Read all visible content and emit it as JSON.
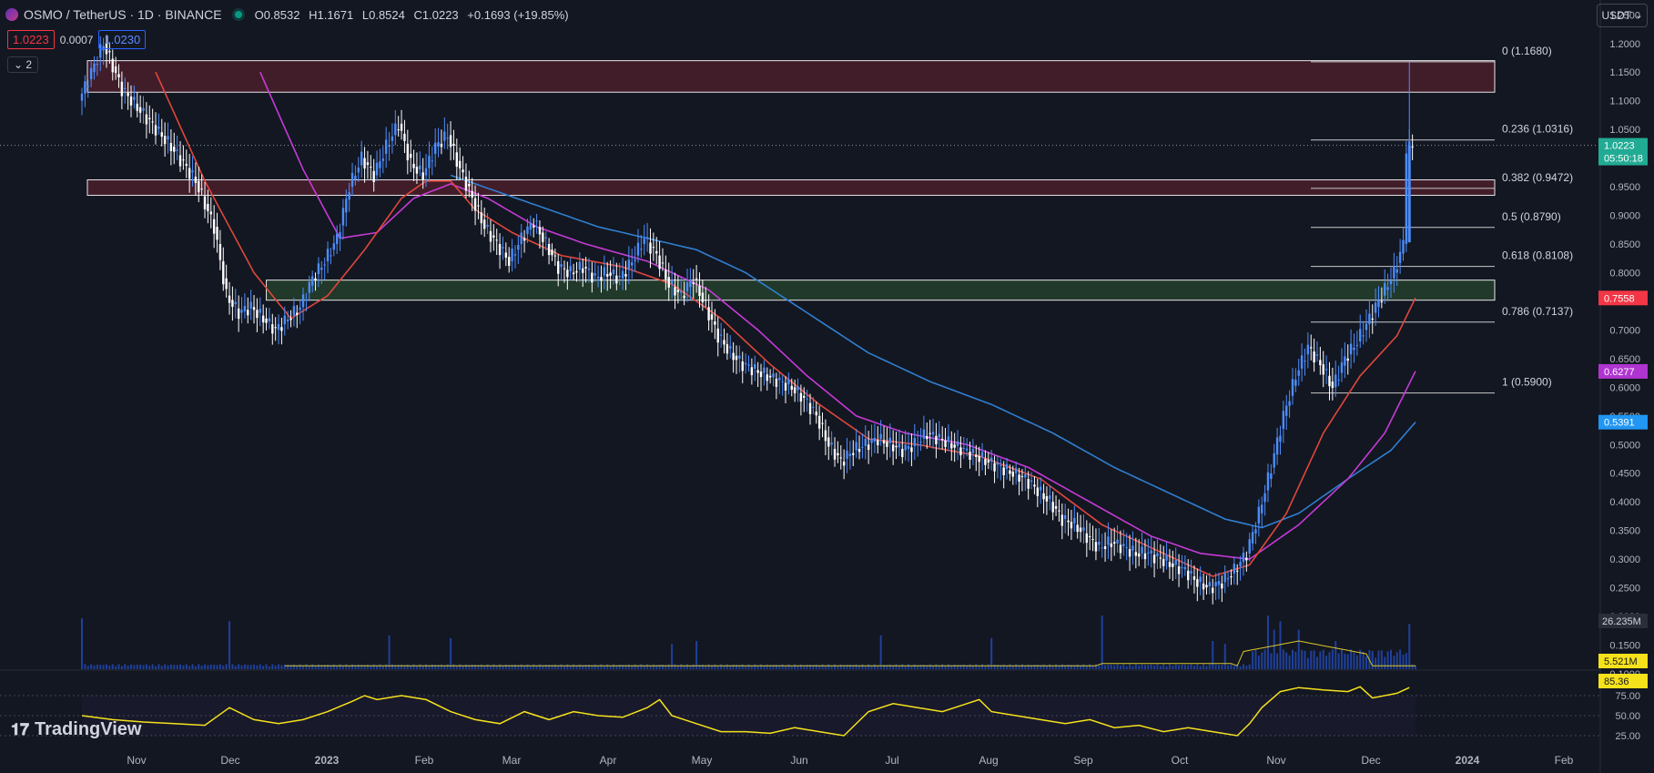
{
  "header": {
    "symbol": "OSMO / TetherUS · 1D · BINANCE",
    "open_label": "O",
    "open": "0.8532",
    "high_label": "H",
    "high": "1.1671",
    "low_label": "L",
    "low": "0.8524",
    "close_label": "C",
    "close": "1.0223",
    "change": "+0.1693 (+19.85%)",
    "bid": "1.0223",
    "spread": "0.0007",
    "ask": "1.0230",
    "indicators_toggle": "2"
  },
  "currency_select": "USDT",
  "brand": "TradingView",
  "colors": {
    "bg": "#131722",
    "up": "#4c8dfd",
    "down": "#ffffff",
    "ema_short": "#e0473b",
    "ema_mid": "#c73ad6",
    "ema_long": "#2f7fd1",
    "resistance_zone": "#4a1f2c",
    "support_zone": "#24402b",
    "rsi": "#f5e21b",
    "volume_ma": "#d9c72a"
  },
  "chart_data": {
    "type": "candlestick",
    "price_axis": {
      "ticks": [
        "1.2500",
        "1.2000",
        "1.1500",
        "1.1000",
        "1.0500",
        "0.9500",
        "0.9000",
        "0.8500",
        "0.8000",
        "0.7000",
        "0.6500",
        "0.6000",
        "0.5500",
        "0.5000",
        "0.4500",
        "0.4000",
        "0.3500",
        "0.3000",
        "0.2500",
        "0.2000",
        "0.1500",
        "0.1000"
      ],
      "tick_values": [
        1.25,
        1.2,
        1.15,
        1.1,
        1.05,
        0.95,
        0.9,
        0.85,
        0.8,
        0.7,
        0.65,
        0.6,
        0.55,
        0.5,
        0.45,
        0.4,
        0.35,
        0.3,
        0.25,
        0.2,
        0.15,
        0.1
      ],
      "ylim": [
        0.1,
        1.26
      ]
    },
    "time_axis": {
      "labels": [
        "Nov",
        "Dec",
        "2023",
        "Feb",
        "Mar",
        "Apr",
        "May",
        "Jun",
        "Jul",
        "Aug",
        "Sep",
        "Oct",
        "Nov",
        "Dec",
        "2024",
        "Feb"
      ],
      "bold": [
        "2023",
        "2024"
      ]
    },
    "price_path": [
      [
        0,
        1.1
      ],
      [
        8,
        1.2
      ],
      [
        14,
        1.12
      ],
      [
        22,
        1.07
      ],
      [
        30,
        1.02
      ],
      [
        38,
        0.96
      ],
      [
        44,
        0.88
      ],
      [
        48,
        0.76
      ],
      [
        52,
        0.73
      ],
      [
        56,
        0.74
      ],
      [
        60,
        0.72
      ],
      [
        64,
        0.7
      ],
      [
        68,
        0.72
      ],
      [
        72,
        0.74
      ],
      [
        76,
        0.79
      ],
      [
        80,
        0.82
      ],
      [
        84,
        0.86
      ],
      [
        88,
        0.95
      ],
      [
        92,
        1.0
      ],
      [
        96,
        0.97
      ],
      [
        100,
        1.02
      ],
      [
        104,
        1.06
      ],
      [
        108,
        0.99
      ],
      [
        112,
        0.97
      ],
      [
        116,
        1.02
      ],
      [
        120,
        1.04
      ],
      [
        124,
        0.98
      ],
      [
        128,
        0.93
      ],
      [
        132,
        0.88
      ],
      [
        136,
        0.85
      ],
      [
        140,
        0.82
      ],
      [
        144,
        0.86
      ],
      [
        148,
        0.89
      ],
      [
        152,
        0.85
      ],
      [
        156,
        0.81
      ],
      [
        160,
        0.8
      ],
      [
        164,
        0.81
      ],
      [
        168,
        0.79
      ],
      [
        172,
        0.8
      ],
      [
        176,
        0.79
      ],
      [
        180,
        0.82
      ],
      [
        184,
        0.86
      ],
      [
        188,
        0.83
      ],
      [
        192,
        0.78
      ],
      [
        196,
        0.76
      ],
      [
        200,
        0.79
      ],
      [
        204,
        0.74
      ],
      [
        208,
        0.69
      ],
      [
        212,
        0.66
      ],
      [
        216,
        0.64
      ],
      [
        220,
        0.63
      ],
      [
        224,
        0.62
      ],
      [
        228,
        0.61
      ],
      [
        232,
        0.6
      ],
      [
        236,
        0.58
      ],
      [
        240,
        0.55
      ],
      [
        244,
        0.5
      ],
      [
        248,
        0.47
      ],
      [
        252,
        0.49
      ],
      [
        256,
        0.5
      ],
      [
        260,
        0.51
      ],
      [
        264,
        0.5
      ],
      [
        268,
        0.49
      ],
      [
        272,
        0.5
      ],
      [
        276,
        0.52
      ],
      [
        280,
        0.51
      ],
      [
        284,
        0.5
      ],
      [
        288,
        0.49
      ],
      [
        292,
        0.48
      ],
      [
        296,
        0.47
      ],
      [
        300,
        0.46
      ],
      [
        304,
        0.45
      ],
      [
        308,
        0.44
      ],
      [
        312,
        0.42
      ],
      [
        316,
        0.4
      ],
      [
        320,
        0.37
      ],
      [
        324,
        0.36
      ],
      [
        328,
        0.34
      ],
      [
        332,
        0.32
      ],
      [
        336,
        0.33
      ],
      [
        340,
        0.32
      ],
      [
        344,
        0.31
      ],
      [
        348,
        0.31
      ],
      [
        352,
        0.3
      ],
      [
        356,
        0.29
      ],
      [
        360,
        0.28
      ],
      [
        364,
        0.26
      ],
      [
        368,
        0.25
      ],
      [
        372,
        0.26
      ],
      [
        376,
        0.28
      ],
      [
        380,
        0.31
      ],
      [
        384,
        0.38
      ],
      [
        388,
        0.46
      ],
      [
        392,
        0.55
      ],
      [
        396,
        0.62
      ],
      [
        400,
        0.67
      ],
      [
        404,
        0.64
      ],
      [
        408,
        0.6
      ],
      [
        412,
        0.65
      ],
      [
        416,
        0.68
      ],
      [
        420,
        0.72
      ],
      [
        424,
        0.76
      ],
      [
        428,
        0.8
      ],
      [
        431,
        0.85
      ],
      [
        432,
        1.02
      ]
    ],
    "ema_short": [
      [
        24,
        1.15
      ],
      [
        40,
        0.96
      ],
      [
        56,
        0.8
      ],
      [
        68,
        0.72
      ],
      [
        80,
        0.76
      ],
      [
        92,
        0.84
      ],
      [
        104,
        0.93
      ],
      [
        112,
        0.96
      ],
      [
        120,
        0.96
      ],
      [
        128,
        0.91
      ],
      [
        140,
        0.87
      ],
      [
        156,
        0.83
      ],
      [
        176,
        0.81
      ],
      [
        192,
        0.78
      ],
      [
        208,
        0.72
      ],
      [
        224,
        0.64
      ],
      [
        240,
        0.57
      ],
      [
        256,
        0.51
      ],
      [
        272,
        0.5
      ],
      [
        292,
        0.48
      ],
      [
        312,
        0.44
      ],
      [
        332,
        0.36
      ],
      [
        352,
        0.31
      ],
      [
        368,
        0.27
      ],
      [
        380,
        0.29
      ],
      [
        392,
        0.38
      ],
      [
        404,
        0.52
      ],
      [
        416,
        0.62
      ],
      [
        428,
        0.69
      ],
      [
        434,
        0.756
      ]
    ],
    "ema_mid": [
      [
        58,
        1.15
      ],
      [
        72,
        0.98
      ],
      [
        84,
        0.86
      ],
      [
        96,
        0.87
      ],
      [
        108,
        0.93
      ],
      [
        120,
        0.955
      ],
      [
        132,
        0.93
      ],
      [
        148,
        0.88
      ],
      [
        164,
        0.85
      ],
      [
        184,
        0.82
      ],
      [
        204,
        0.77
      ],
      [
        220,
        0.7
      ],
      [
        236,
        0.62
      ],
      [
        252,
        0.55
      ],
      [
        268,
        0.52
      ],
      [
        288,
        0.5
      ],
      [
        308,
        0.46
      ],
      [
        328,
        0.4
      ],
      [
        348,
        0.34
      ],
      [
        364,
        0.31
      ],
      [
        380,
        0.3
      ],
      [
        396,
        0.36
      ],
      [
        412,
        0.44
      ],
      [
        424,
        0.52
      ],
      [
        434,
        0.628
      ]
    ],
    "ema_long": [
      [
        120,
        0.97
      ],
      [
        136,
        0.94
      ],
      [
        152,
        0.91
      ],
      [
        168,
        0.88
      ],
      [
        184,
        0.86
      ],
      [
        200,
        0.84
      ],
      [
        216,
        0.8
      ],
      [
        236,
        0.73
      ],
      [
        256,
        0.66
      ],
      [
        276,
        0.61
      ],
      [
        296,
        0.57
      ],
      [
        316,
        0.52
      ],
      [
        336,
        0.46
      ],
      [
        356,
        0.41
      ],
      [
        372,
        0.37
      ],
      [
        384,
        0.355
      ],
      [
        396,
        0.38
      ],
      [
        412,
        0.44
      ],
      [
        426,
        0.49
      ],
      [
        434,
        0.539
      ]
    ],
    "zones": [
      {
        "type": "resistance",
        "from": 1.115,
        "to": 1.17
      },
      {
        "type": "resistance",
        "from": 0.935,
        "to": 0.962
      },
      {
        "type": "support",
        "from": 0.752,
        "to": 0.787
      }
    ],
    "fibonacci": [
      {
        "label": "0 (1.1680)",
        "value": 1.168
      },
      {
        "label": "0.236 (1.0316)",
        "value": 1.0316
      },
      {
        "label": "0.382 (0.9472)",
        "value": 0.9472
      },
      {
        "label": "0.5 (0.8790)",
        "value": 0.879
      },
      {
        "label": "0.618 (0.8108)",
        "value": 0.8108
      },
      {
        "label": "0.786 (0.7137)",
        "value": 0.7137
      },
      {
        "label": "1 (0.5900)",
        "value": 0.59
      }
    ],
    "price_badges": [
      {
        "text": "1.0223",
        "sub": "05:50:18",
        "value": 1.0223,
        "color": "#22ab94"
      },
      {
        "text": "0.7558",
        "value": 0.7558,
        "color": "#f23645"
      },
      {
        "text": "0.6277",
        "value": 0.6277,
        "color": "#b035d0"
      },
      {
        "text": "0.5391",
        "value": 0.5391,
        "color": "#2196f3"
      }
    ],
    "volume": {
      "label_last": "26.235M",
      "label_ma": "5.521M",
      "spikes": [
        [
          0,
          0.9
        ],
        [
          48,
          0.85
        ],
        [
          100,
          0.6
        ],
        [
          120,
          0.55
        ],
        [
          192,
          0.45
        ],
        [
          200,
          0.5
        ],
        [
          260,
          0.6
        ],
        [
          296,
          0.55
        ],
        [
          332,
          0.95
        ],
        [
          368,
          0.5
        ],
        [
          372,
          0.45
        ],
        [
          386,
          0.95
        ],
        [
          388,
          0.7
        ],
        [
          390,
          0.85
        ],
        [
          396,
          0.7
        ],
        [
          408,
          0.5
        ],
        [
          432,
          0.8
        ]
      ]
    },
    "rsi": {
      "value_label": "85.36",
      "ticks": [
        "75.00",
        "50.00",
        "25.00"
      ],
      "tick_values": [
        75,
        50,
        25
      ],
      "points": [
        [
          0,
          50
        ],
        [
          10,
          45
        ],
        [
          20,
          42
        ],
        [
          30,
          40
        ],
        [
          40,
          38
        ],
        [
          48,
          60
        ],
        [
          56,
          45
        ],
        [
          64,
          40
        ],
        [
          72,
          45
        ],
        [
          80,
          55
        ],
        [
          88,
          68
        ],
        [
          92,
          75
        ],
        [
          96,
          70
        ],
        [
          104,
          75
        ],
        [
          112,
          70
        ],
        [
          120,
          55
        ],
        [
          128,
          45
        ],
        [
          136,
          40
        ],
        [
          144,
          55
        ],
        [
          152,
          45
        ],
        [
          160,
          55
        ],
        [
          168,
          50
        ],
        [
          176,
          48
        ],
        [
          184,
          60
        ],
        [
          188,
          70
        ],
        [
          192,
          50
        ],
        [
          200,
          40
        ],
        [
          208,
          30
        ],
        [
          216,
          30
        ],
        [
          224,
          28
        ],
        [
          232,
          35
        ],
        [
          240,
          30
        ],
        [
          248,
          25
        ],
        [
          256,
          55
        ],
        [
          264,
          65
        ],
        [
          272,
          60
        ],
        [
          280,
          55
        ],
        [
          288,
          65
        ],
        [
          292,
          70
        ],
        [
          296,
          55
        ],
        [
          304,
          50
        ],
        [
          312,
          45
        ],
        [
          320,
          40
        ],
        [
          328,
          45
        ],
        [
          336,
          35
        ],
        [
          344,
          38
        ],
        [
          352,
          30
        ],
        [
          360,
          35
        ],
        [
          368,
          30
        ],
        [
          376,
          25
        ],
        [
          380,
          40
        ],
        [
          384,
          60
        ],
        [
          390,
          80
        ],
        [
          396,
          85
        ],
        [
          404,
          82
        ],
        [
          412,
          80
        ],
        [
          416,
          86
        ],
        [
          420,
          72
        ],
        [
          428,
          78
        ],
        [
          432,
          85
        ]
      ]
    }
  }
}
